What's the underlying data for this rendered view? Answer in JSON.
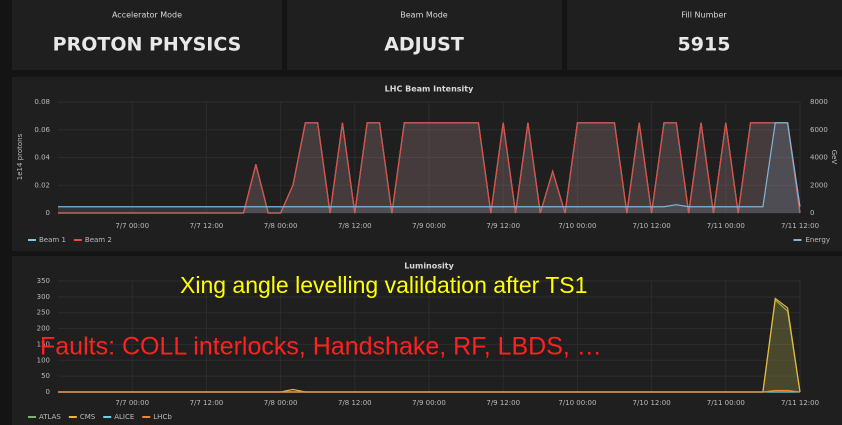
{
  "panels": [
    {
      "title": "Accelerator Mode",
      "value": "PROTON PHYSICS"
    },
    {
      "title": "Beam Mode",
      "value": "ADJUST"
    },
    {
      "title": "Fill Number",
      "value": 5915
    }
  ],
  "chart_data": [
    {
      "type": "line",
      "title": "LHC Beam Intensity",
      "ylabel": "1e14 protons",
      "y2label": "GeV",
      "categories": [
        null,
        null,
        null,
        null,
        null,
        null,
        "7/7 00:00",
        null,
        null,
        null,
        null,
        null,
        "7/7 12:00",
        null,
        null,
        null,
        null,
        null,
        "7/8 00:00",
        null,
        null,
        null,
        null,
        null,
        "7/8 12:00",
        null,
        null,
        null,
        null,
        null,
        "7/9 00:00",
        null,
        null,
        null,
        null,
        null,
        "7/9 12:00",
        null,
        null,
        null,
        null,
        null,
        "7/10 00:00",
        null,
        null,
        null,
        null,
        null,
        "7/10 12:00",
        null,
        null,
        null,
        null,
        null,
        "7/11 00:00",
        null,
        null,
        null,
        null,
        null,
        "7/11 12:00"
      ],
      "ylim": [
        0,
        0.08
      ],
      "yticks": [
        0,
        0.02,
        0.04,
        0.06,
        0.08
      ],
      "y2lim": [
        0,
        8000
      ],
      "y2ticks": [
        0,
        2000,
        4000,
        6000,
        8000
      ],
      "grid": true,
      "series": [
        {
          "name": "Beam 1",
          "color": "#6ed0e0",
          "values": [
            0,
            0,
            0,
            0,
            0,
            0,
            0,
            0,
            0,
            0,
            0,
            0,
            0,
            0,
            0,
            0,
            0.035,
            0,
            0,
            0.02,
            0.065,
            0.065,
            0,
            0.065,
            0,
            0.065,
            0.065,
            0,
            0.065,
            0.065,
            0.065,
            0.065,
            0.065,
            0.065,
            0.065,
            0,
            0.065,
            0,
            0.065,
            0,
            0.03,
            0,
            0.065,
            0.065,
            0.065,
            0.065,
            0,
            0.065,
            0,
            0.065,
            0.065,
            0,
            0.065,
            0,
            0.065,
            0,
            0.065,
            0.065,
            0.065,
            0.065,
            0
          ]
        },
        {
          "name": "Beam 2",
          "color": "#e24d42",
          "values": [
            0,
            0,
            0,
            0,
            0,
            0,
            0,
            0,
            0,
            0,
            0,
            0,
            0,
            0,
            0,
            0,
            0.035,
            0,
            0,
            0.02,
            0.065,
            0.065,
            0,
            0.065,
            0,
            0.065,
            0.065,
            0,
            0.065,
            0.065,
            0.065,
            0.065,
            0.065,
            0.065,
            0.065,
            0,
            0.065,
            0,
            0.065,
            0,
            0.03,
            0,
            0.065,
            0.065,
            0.065,
            0.065,
            0,
            0.065,
            0,
            0.065,
            0.065,
            0,
            0.065,
            0,
            0.065,
            0,
            0.065,
            0.065,
            0.065,
            0.065,
            0
          ]
        },
        {
          "name": "Energy",
          "color": "#82b5d8",
          "axis": "y2",
          "values": [
            450,
            450,
            450,
            450,
            450,
            450,
            450,
            450,
            450,
            450,
            450,
            450,
            450,
            450,
            450,
            450,
            450,
            450,
            450,
            450,
            450,
            450,
            450,
            450,
            450,
            450,
            450,
            450,
            450,
            450,
            450,
            450,
            450,
            450,
            450,
            450,
            450,
            450,
            450,
            450,
            450,
            450,
            450,
            450,
            450,
            450,
            450,
            450,
            450,
            450,
            600,
            450,
            450,
            450,
            450,
            450,
            450,
            450,
            6500,
            6500,
            450
          ]
        }
      ]
    },
    {
      "type": "line",
      "title": "Luminosity",
      "categories": [
        null,
        null,
        null,
        null,
        null,
        null,
        "7/7 00:00",
        null,
        null,
        null,
        null,
        null,
        "7/7 12:00",
        null,
        null,
        null,
        null,
        null,
        "7/8 00:00",
        null,
        null,
        null,
        null,
        null,
        "7/8 12:00",
        null,
        null,
        null,
        null,
        null,
        "7/9 00:00",
        null,
        null,
        null,
        null,
        null,
        "7/9 12:00",
        null,
        null,
        null,
        null,
        null,
        "7/10 00:00",
        null,
        null,
        null,
        null,
        null,
        "7/10 12:00",
        null,
        null,
        null,
        null,
        null,
        "7/11 00:00",
        null,
        null,
        null,
        null,
        null,
        "7/11 12:00"
      ],
      "ylim": [
        0,
        350
      ],
      "yticks": [
        0,
        50,
        100,
        150,
        200,
        250,
        300,
        350
      ],
      "grid": true,
      "series": [
        {
          "name": "ATLAS",
          "color": "#7eb26d",
          "values": [
            0,
            0,
            0,
            0,
            0,
            0,
            0,
            0,
            0,
            0,
            0,
            0,
            0,
            0,
            0,
            0,
            0,
            0,
            0,
            0,
            0,
            0,
            0,
            0,
            0,
            0,
            0,
            0,
            0,
            0,
            0,
            0,
            0,
            0,
            0,
            0,
            0,
            0,
            0,
            0,
            0,
            0,
            0,
            0,
            0,
            0,
            0,
            0,
            0,
            0,
            0,
            0,
            0,
            0,
            0,
            0,
            0,
            0,
            290,
            255,
            0
          ]
        },
        {
          "name": "CMS",
          "color": "#eab839",
          "values": [
            0,
            0,
            0,
            0,
            0,
            0,
            0,
            0,
            0,
            0,
            0,
            0,
            0,
            0,
            0,
            0,
            0,
            0,
            0,
            8,
            0,
            0,
            0,
            0,
            0,
            0,
            0,
            0,
            0,
            0,
            0,
            0,
            0,
            0,
            0,
            0,
            0,
            0,
            0,
            0,
            0,
            0,
            0,
            0,
            0,
            0,
            0,
            0,
            0,
            0,
            0,
            0,
            0,
            0,
            0,
            0,
            0,
            0,
            295,
            265,
            0
          ]
        },
        {
          "name": "ALICE",
          "color": "#6ed0e0",
          "values": [
            0,
            0,
            0,
            0,
            0,
            0,
            0,
            0,
            0,
            0,
            0,
            0,
            0,
            0,
            0,
            0,
            0,
            0,
            0,
            0,
            0,
            0,
            0,
            0,
            0,
            0,
            0,
            0,
            0,
            0,
            0,
            0,
            0,
            0,
            0,
            0,
            0,
            0,
            0,
            0,
            0,
            0,
            0,
            0,
            0,
            0,
            0,
            0,
            0,
            0,
            0,
            0,
            0,
            0,
            0,
            0,
            0,
            0,
            0,
            0,
            0
          ]
        },
        {
          "name": "LHCb",
          "color": "#ef843c",
          "values": [
            0,
            0,
            0,
            0,
            0,
            0,
            0,
            0,
            0,
            0,
            0,
            0,
            0,
            0,
            0,
            0,
            0,
            0,
            0,
            0,
            0,
            0,
            0,
            0,
            0,
            0,
            0,
            0,
            0,
            0,
            0,
            0,
            0,
            0,
            0,
            0,
            0,
            0,
            0,
            0,
            0,
            0,
            0,
            0,
            0,
            0,
            0,
            0,
            0,
            0,
            0,
            0,
            0,
            0,
            0,
            0,
            0,
            0,
            5,
            5,
            0
          ]
        }
      ],
      "annotations": [
        {
          "text": "Xing angle levelling valildation after TS1",
          "color": "#ffff00"
        },
        {
          "text": "Faults: COLL interlocks, Handshake, RF, LBDS, …",
          "color": "#ff2020"
        }
      ]
    }
  ]
}
